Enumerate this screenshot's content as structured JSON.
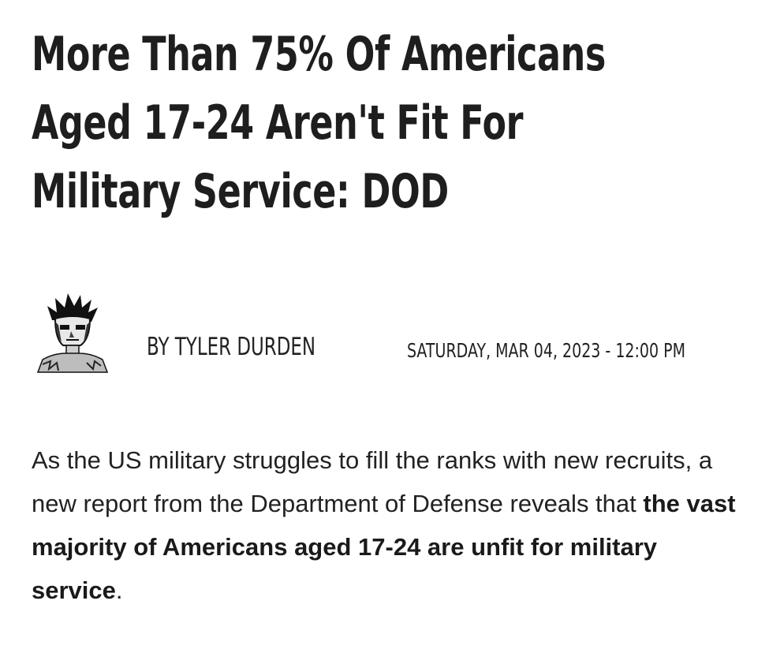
{
  "article": {
    "headline_lines": [
      "More Than 75% Of Americans",
      "Aged 17-24 Aren't Fit For",
      "Military Service: DOD"
    ],
    "author": "BY TYLER DURDEN",
    "dateline": "SATURDAY, MAR 04, 2023 - 12:00 PM",
    "body": {
      "lead": "As the US military struggles to fill the ranks with new recruits, a new report from the Department of Defense reveals that ",
      "emphasis": "the vast majority of Americans aged 17-24 are unfit for military service",
      "tail": "."
    }
  },
  "icons": {
    "avatar": "author-avatar-icon"
  }
}
